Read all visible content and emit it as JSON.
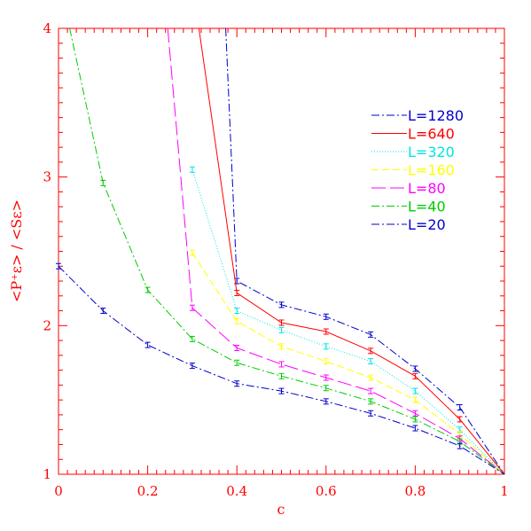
{
  "chart_data": {
    "type": "line",
    "title": "",
    "xlabel": "c",
    "ylabel": "<P⁺ε> / <Sε>",
    "xlim": [
      0,
      1
    ],
    "ylim": [
      1,
      4
    ],
    "x_ticks": [
      "0",
      "0.2",
      "0.4",
      "0.6",
      "0.8",
      "1"
    ],
    "y_ticks": [
      "1",
      "2",
      "3",
      "4"
    ],
    "grid": false,
    "legend_position": "top-right",
    "series": [
      {
        "name": "L=1280",
        "color": "#0000cc",
        "dash": "dashdot",
        "x": [
          0.375,
          0.4,
          0.5,
          0.6,
          0.7,
          0.8,
          0.9,
          1.0
        ],
        "y": [
          4.0,
          2.3,
          2.14,
          2.06,
          1.94,
          1.71,
          1.45,
          1.0
        ]
      },
      {
        "name": "L=640",
        "color": "#ff0000",
        "dash": "solid",
        "x": [
          0.315,
          0.4,
          0.5,
          0.6,
          0.7,
          0.8,
          0.9,
          1.0
        ],
        "y": [
          4.0,
          2.22,
          2.02,
          1.96,
          1.83,
          1.66,
          1.37,
          1.0
        ]
      },
      {
        "name": "L=320",
        "color": "#00e5e5",
        "dash": "dotted",
        "x": [
          0.3,
          0.4,
          0.5,
          0.6,
          0.7,
          0.8,
          0.9,
          1.0
        ],
        "y": [
          3.05,
          2.1,
          1.97,
          1.86,
          1.76,
          1.56,
          1.3,
          1.0
        ]
      },
      {
        "name": "L=160",
        "color": "#ffff00",
        "dash": "dashed",
        "x": [
          0.3,
          0.4,
          0.5,
          0.6,
          0.7,
          0.8,
          0.9,
          1.0
        ],
        "y": [
          2.49,
          2.03,
          1.86,
          1.76,
          1.65,
          1.5,
          1.27,
          1.0
        ]
      },
      {
        "name": "L=80",
        "color": "#ff00ff",
        "dash": "longdash",
        "x": [
          0.245,
          0.3,
          0.4,
          0.5,
          0.6,
          0.7,
          0.8,
          0.9,
          1.0
        ],
        "y": [
          4.0,
          2.12,
          1.85,
          1.74,
          1.65,
          1.56,
          1.41,
          1.24,
          1.0
        ]
      },
      {
        "name": "L=40",
        "color": "#00cc00",
        "dash": "dashdot",
        "x": [
          0.025,
          0.1,
          0.2,
          0.3,
          0.4,
          0.5,
          0.6,
          0.7,
          0.8,
          0.9,
          1.0
        ],
        "y": [
          4.0,
          2.96,
          2.24,
          1.91,
          1.75,
          1.66,
          1.58,
          1.49,
          1.37,
          1.22,
          1.0
        ]
      },
      {
        "name": "L=20",
        "color": "#0000cc",
        "dash": "dashdot",
        "x": [
          0.0,
          0.1,
          0.2,
          0.3,
          0.4,
          0.5,
          0.6,
          0.7,
          0.8,
          0.9,
          1.0
        ],
        "y": [
          2.4,
          2.1,
          1.87,
          1.73,
          1.61,
          1.56,
          1.49,
          1.41,
          1.31,
          1.19,
          1.0
        ]
      }
    ]
  }
}
